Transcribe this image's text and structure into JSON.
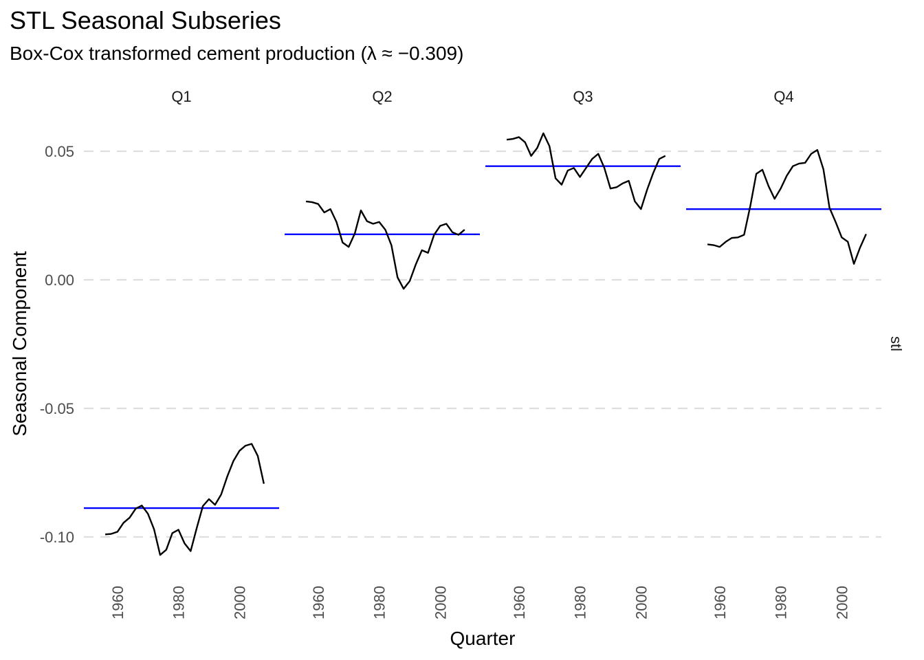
{
  "title": "STL Seasonal Subseries",
  "subtitle": "Box-Cox transformed cement production (λ ≈ −0.309)",
  "colors": {
    "series": "#000000",
    "mean": "#0000ff",
    "grid": "#dedede",
    "axis_text": "#4d4d4d"
  },
  "chart_data": {
    "type": "line",
    "title": "STL Seasonal Subseries",
    "subtitle": "Box-Cox transformed cement production (λ ≈ −0.309)",
    "xlabel": "Quarter",
    "ylabel": "Seasonal Component",
    "strip_right": "stl",
    "ylim": [
      -0.115,
      0.058
    ],
    "xlim": [
      1949,
      2013
    ],
    "y_ticks": [
      0.05,
      0.0,
      -0.05,
      -0.1
    ],
    "y_tick_labels": [
      "0.05",
      "0.00",
      "-0.05",
      "-0.10"
    ],
    "x_ticks": [
      1960,
      1980,
      2000
    ],
    "x_tick_labels": [
      "1960",
      "1980",
      "2000"
    ],
    "grid": "horizontal dashed",
    "panels": [
      {
        "label": "Q1",
        "mean": -0.0888,
        "x": [
          1956,
          1958,
          1960,
          1962,
          1964,
          1966,
          1968,
          1970,
          1972,
          1974,
          1976,
          1978,
          1980,
          1982,
          1984,
          1986,
          1988,
          1990,
          1992,
          1994,
          1996,
          1998,
          2000,
          2002,
          2004,
          2006,
          2008
        ],
        "y": [
          -0.099,
          -0.0988,
          -0.098,
          -0.0945,
          -0.0925,
          -0.089,
          -0.0878,
          -0.091,
          -0.097,
          -0.107,
          -0.105,
          -0.0985,
          -0.0972,
          -0.1025,
          -0.1055,
          -0.0965,
          -0.088,
          -0.0853,
          -0.0875,
          -0.0835,
          -0.0765,
          -0.0705,
          -0.0665,
          -0.0645,
          -0.0638,
          -0.0685,
          -0.0793
        ]
      },
      {
        "label": "Q2",
        "mean": 0.0177,
        "x": [
          1956,
          1958,
          1960,
          1962,
          1964,
          1966,
          1968,
          1970,
          1972,
          1974,
          1976,
          1978,
          1980,
          1982,
          1984,
          1986,
          1988,
          1990,
          1992,
          1994,
          1996,
          1998,
          2000,
          2002,
          2004,
          2006,
          2008
        ],
        "y": [
          0.0305,
          0.0302,
          0.0295,
          0.0262,
          0.0275,
          0.0225,
          0.0145,
          0.0128,
          0.018,
          0.027,
          0.0228,
          0.0218,
          0.0225,
          0.0195,
          0.0135,
          0.001,
          -0.0035,
          -0.0005,
          0.006,
          0.0115,
          0.0105,
          0.0175,
          0.021,
          0.0218,
          0.0185,
          0.0175,
          0.0195
        ]
      },
      {
        "label": "Q3",
        "mean": 0.0442,
        "x": [
          1956,
          1958,
          1960,
          1962,
          1964,
          1966,
          1968,
          1970,
          1972,
          1974,
          1976,
          1978,
          1980,
          1982,
          1984,
          1986,
          1988,
          1990,
          1992,
          1994,
          1996,
          1998,
          2000,
          2002,
          2004,
          2006,
          2008
        ],
        "y": [
          0.0545,
          0.0548,
          0.0555,
          0.0535,
          0.0482,
          0.0513,
          0.057,
          0.052,
          0.0395,
          0.037,
          0.0425,
          0.0435,
          0.04,
          0.0435,
          0.047,
          0.049,
          0.0435,
          0.0355,
          0.036,
          0.0375,
          0.0385,
          0.0305,
          0.0275,
          0.035,
          0.0415,
          0.047,
          0.0482
        ]
      },
      {
        "label": "Q4",
        "mean": 0.0275,
        "x": [
          1956,
          1958,
          1960,
          1962,
          1964,
          1966,
          1968,
          1970,
          1972,
          1974,
          1976,
          1978,
          1980,
          1982,
          1984,
          1986,
          1988,
          1990,
          1992,
          1994,
          1996,
          1998,
          2000,
          2002,
          2004,
          2006,
          2008
        ],
        "y": [
          0.0138,
          0.0135,
          0.0128,
          0.0148,
          0.0163,
          0.0165,
          0.0175,
          0.0285,
          0.0412,
          0.0428,
          0.0365,
          0.0315,
          0.0355,
          0.0405,
          0.0442,
          0.0452,
          0.0455,
          0.049,
          0.0505,
          0.043,
          0.028,
          0.0225,
          0.0165,
          0.0148,
          0.0062,
          0.0125,
          0.0178
        ]
      }
    ]
  }
}
